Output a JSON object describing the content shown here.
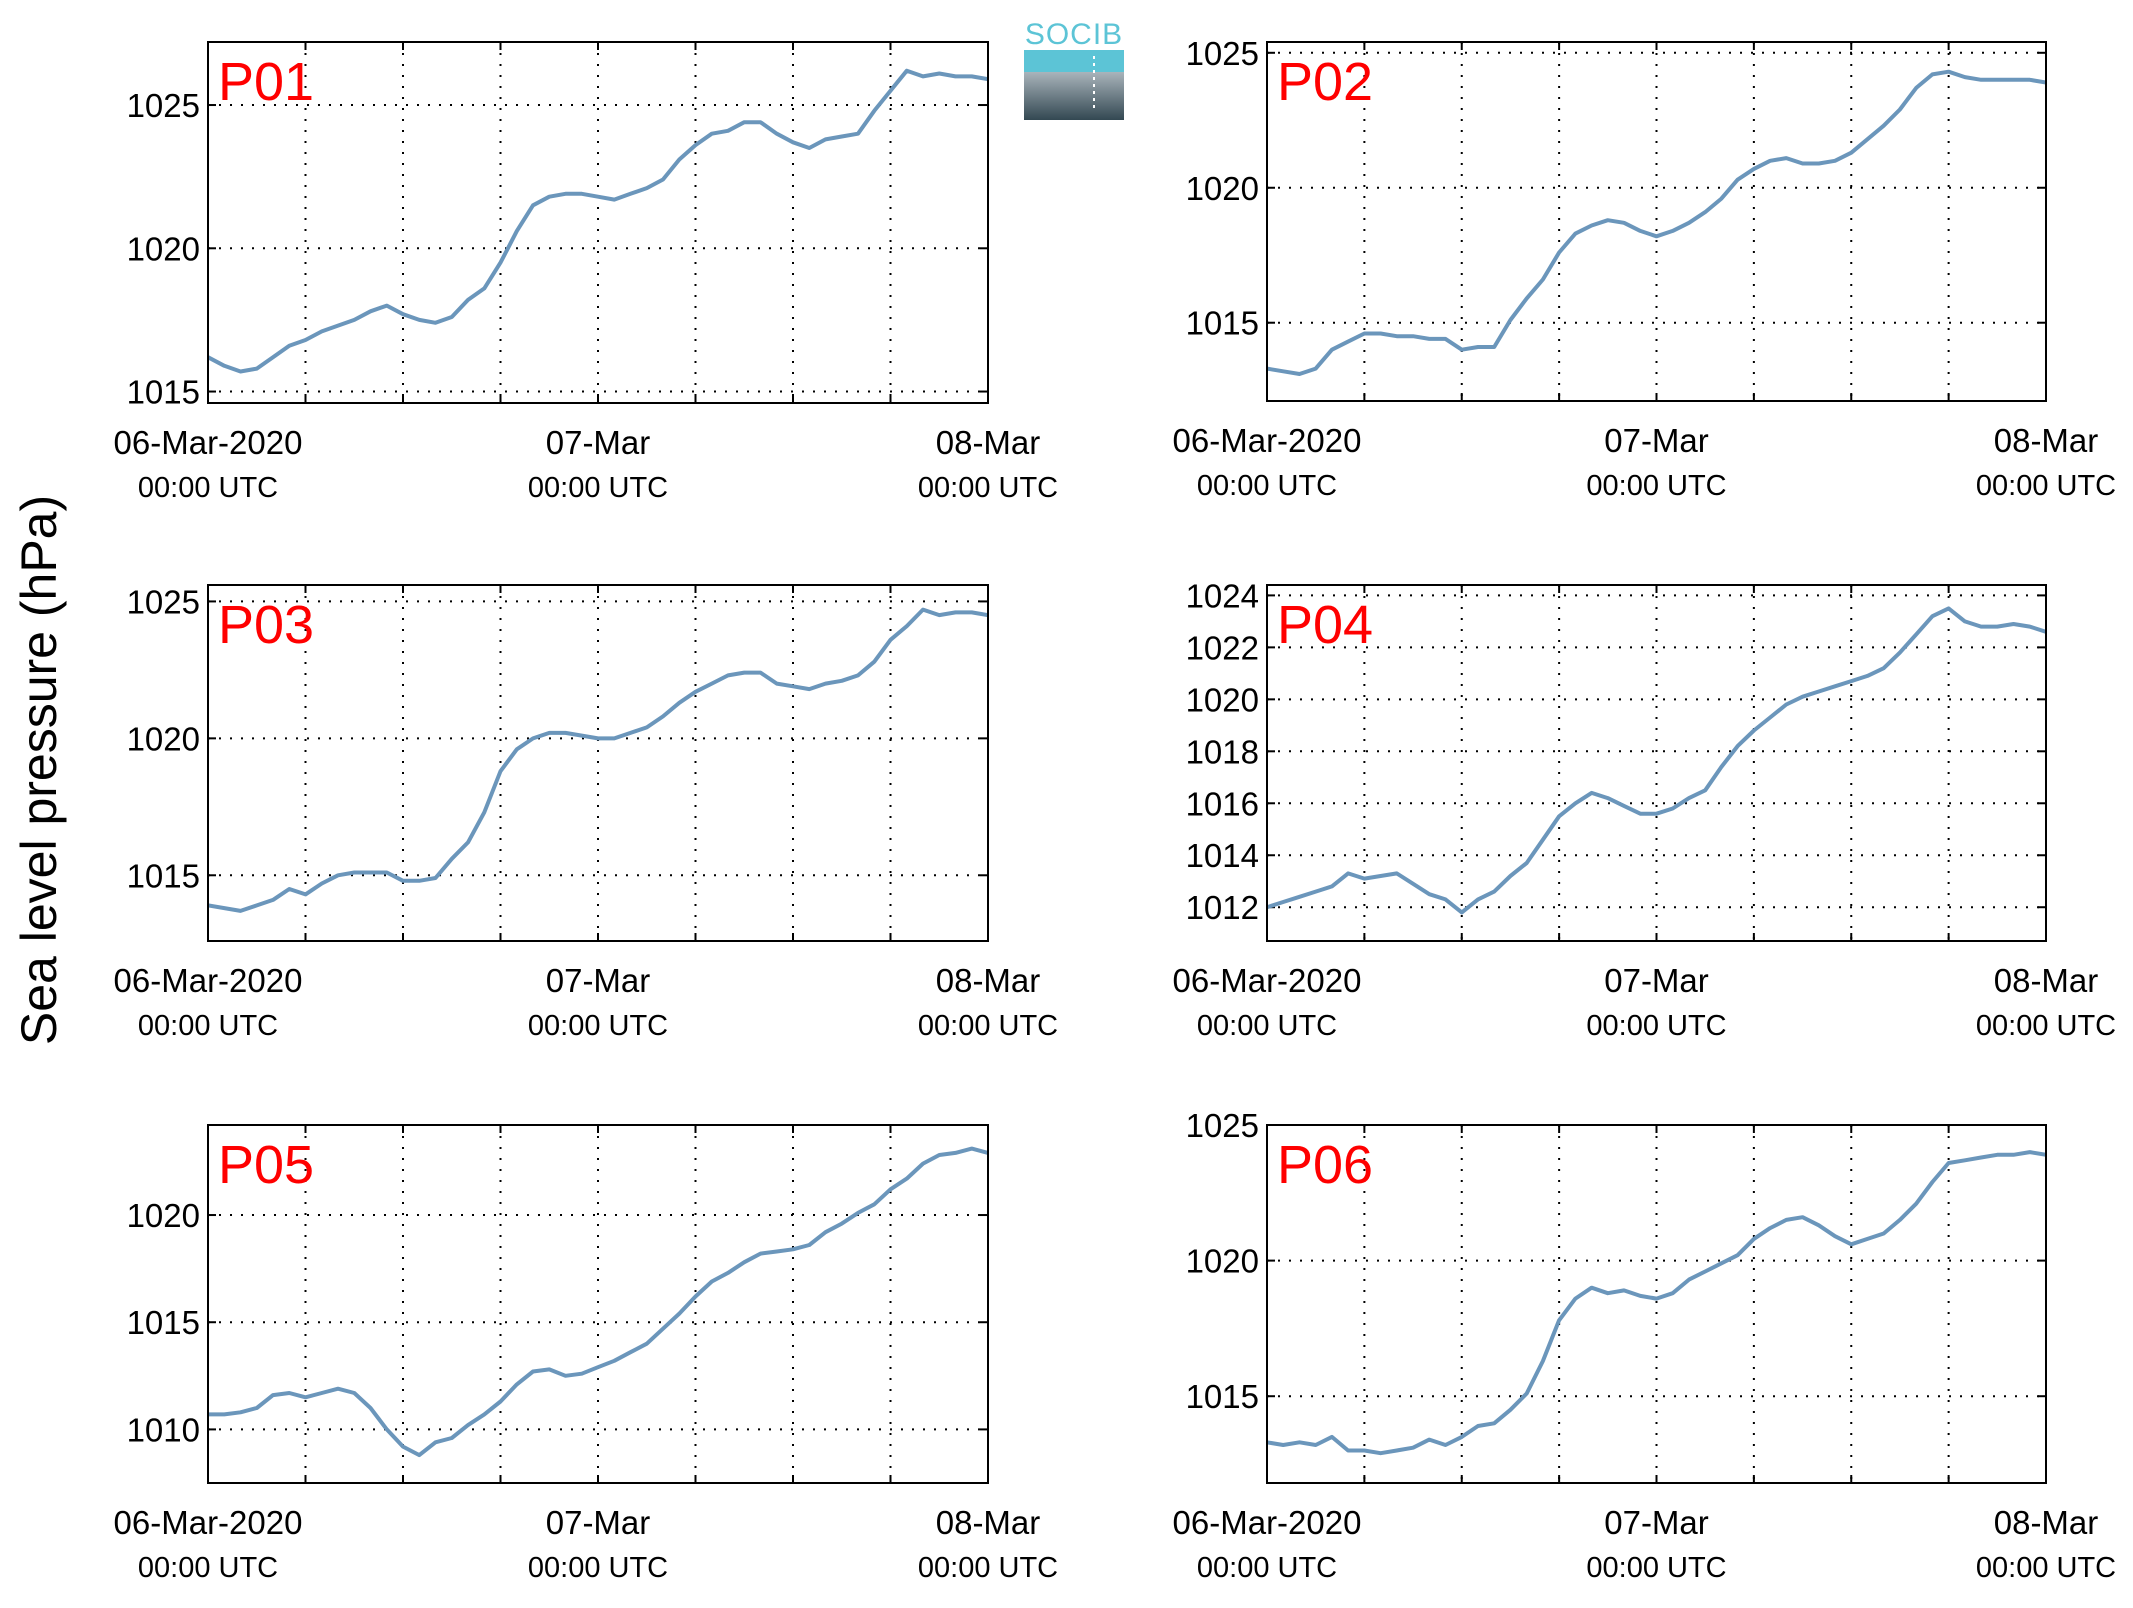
{
  "figure": {
    "ylabel": "Sea level pressure (hPa)",
    "logo": {
      "text": "SOCIB"
    }
  },
  "style": {
    "line_color": "#6b96bb",
    "label_color": "#ff0000",
    "grid_color": "#000000"
  },
  "chart_data": [
    {
      "type": "line",
      "label": "P01",
      "xlim": [
        0,
        48
      ],
      "ylim": [
        1014.6,
        1027.2
      ],
      "yticks": [
        1015,
        1020,
        1025
      ],
      "xticks_major": [
        {
          "value": 0,
          "date": "06-Mar-2020",
          "time": "00:00 UTC"
        },
        {
          "value": 24,
          "date": "07-Mar",
          "time": "00:00 UTC"
        },
        {
          "value": 48,
          "date": "08-Mar",
          "time": "00:00 UTC"
        }
      ],
      "xgrid": [
        6,
        12,
        18,
        24,
        30,
        36,
        42
      ],
      "x": [
        0,
        1,
        2,
        3,
        4,
        5,
        6,
        7,
        8,
        9,
        10,
        11,
        12,
        13,
        14,
        15,
        16,
        17,
        18,
        19,
        20,
        21,
        22,
        23,
        24,
        25,
        26,
        27,
        28,
        29,
        30,
        31,
        32,
        33,
        34,
        35,
        36,
        37,
        38,
        39,
        40,
        41,
        42,
        43,
        44,
        45,
        46,
        47,
        48
      ],
      "values": [
        1016.2,
        1015.9,
        1015.7,
        1015.8,
        1016.2,
        1016.6,
        1016.8,
        1017.1,
        1017.3,
        1017.5,
        1017.8,
        1018.0,
        1017.7,
        1017.5,
        1017.4,
        1017.6,
        1018.2,
        1018.6,
        1019.5,
        1020.6,
        1021.5,
        1021.8,
        1021.9,
        1021.9,
        1021.8,
        1021.7,
        1021.9,
        1022.1,
        1022.4,
        1023.1,
        1023.6,
        1024.0,
        1024.1,
        1024.4,
        1024.4,
        1024.0,
        1023.7,
        1023.5,
        1023.8,
        1023.9,
        1024.0,
        1024.8,
        1025.5,
        1026.2,
        1026.0,
        1026.1,
        1026.0,
        1026.0,
        1025.9
      ]
    },
    {
      "type": "line",
      "label": "P02",
      "xlim": [
        0,
        48
      ],
      "ylim": [
        1012.1,
        1025.4
      ],
      "yticks": [
        1015,
        1020,
        1025
      ],
      "xticks_major": [
        {
          "value": 0,
          "date": "06-Mar-2020",
          "time": "00:00 UTC"
        },
        {
          "value": 24,
          "date": "07-Mar",
          "time": "00:00 UTC"
        },
        {
          "value": 48,
          "date": "08-Mar",
          "time": "00:00 UTC"
        }
      ],
      "xgrid": [
        6,
        12,
        18,
        24,
        30,
        36,
        42
      ],
      "x": [
        0,
        1,
        2,
        3,
        4,
        5,
        6,
        7,
        8,
        9,
        10,
        11,
        12,
        13,
        14,
        15,
        16,
        17,
        18,
        19,
        20,
        21,
        22,
        23,
        24,
        25,
        26,
        27,
        28,
        29,
        30,
        31,
        32,
        33,
        34,
        35,
        36,
        37,
        38,
        39,
        40,
        41,
        42,
        43,
        44,
        45,
        46,
        47,
        48
      ],
      "values": [
        1013.3,
        1013.2,
        1013.1,
        1013.3,
        1014.0,
        1014.3,
        1014.6,
        1014.6,
        1014.5,
        1014.5,
        1014.4,
        1014.4,
        1014.0,
        1014.1,
        1014.1,
        1015.1,
        1015.9,
        1016.6,
        1017.6,
        1018.3,
        1018.6,
        1018.8,
        1018.7,
        1018.4,
        1018.2,
        1018.4,
        1018.7,
        1019.1,
        1019.6,
        1020.3,
        1020.7,
        1021.0,
        1021.1,
        1020.9,
        1020.9,
        1021.0,
        1021.3,
        1021.8,
        1022.3,
        1022.9,
        1023.7,
        1024.2,
        1024.3,
        1024.1,
        1024.0,
        1024.0,
        1024.0,
        1024.0,
        1023.9
      ]
    },
    {
      "type": "line",
      "label": "P03",
      "xlim": [
        0,
        48
      ],
      "ylim": [
        1012.6,
        1025.6
      ],
      "yticks": [
        1015,
        1020,
        1025
      ],
      "xticks_major": [
        {
          "value": 0,
          "date": "06-Mar-2020",
          "time": "00:00 UTC"
        },
        {
          "value": 24,
          "date": "07-Mar",
          "time": "00:00 UTC"
        },
        {
          "value": 48,
          "date": "08-Mar",
          "time": "00:00 UTC"
        }
      ],
      "xgrid": [
        6,
        12,
        18,
        24,
        30,
        36,
        42
      ],
      "x": [
        0,
        1,
        2,
        3,
        4,
        5,
        6,
        7,
        8,
        9,
        10,
        11,
        12,
        13,
        14,
        15,
        16,
        17,
        18,
        19,
        20,
        21,
        22,
        23,
        24,
        25,
        26,
        27,
        28,
        29,
        30,
        31,
        32,
        33,
        34,
        35,
        36,
        37,
        38,
        39,
        40,
        41,
        42,
        43,
        44,
        45,
        46,
        47,
        48
      ],
      "values": [
        1013.9,
        1013.8,
        1013.7,
        1013.9,
        1014.1,
        1014.5,
        1014.3,
        1014.7,
        1015.0,
        1015.1,
        1015.1,
        1015.1,
        1014.8,
        1014.8,
        1014.9,
        1015.6,
        1016.2,
        1017.3,
        1018.8,
        1019.6,
        1020.0,
        1020.2,
        1020.2,
        1020.1,
        1020.0,
        1020.0,
        1020.2,
        1020.4,
        1020.8,
        1021.3,
        1021.7,
        1022.0,
        1022.3,
        1022.4,
        1022.4,
        1022.0,
        1021.9,
        1021.8,
        1022.0,
        1022.1,
        1022.3,
        1022.8,
        1023.6,
        1024.1,
        1024.7,
        1024.5,
        1024.6,
        1024.6,
        1024.5
      ]
    },
    {
      "type": "line",
      "label": "P04",
      "xlim": [
        0,
        48
      ],
      "ylim": [
        1010.7,
        1024.4
      ],
      "yticks": [
        1012,
        1014,
        1016,
        1018,
        1020,
        1022,
        1024
      ],
      "xticks_major": [
        {
          "value": 0,
          "date": "06-Mar-2020",
          "time": "00:00 UTC"
        },
        {
          "value": 24,
          "date": "07-Mar",
          "time": "00:00 UTC"
        },
        {
          "value": 48,
          "date": "08-Mar",
          "time": "00:00 UTC"
        }
      ],
      "xgrid": [
        6,
        12,
        18,
        24,
        30,
        36,
        42
      ],
      "x": [
        0,
        1,
        2,
        3,
        4,
        5,
        6,
        7,
        8,
        9,
        10,
        11,
        12,
        13,
        14,
        15,
        16,
        17,
        18,
        19,
        20,
        21,
        22,
        23,
        24,
        25,
        26,
        27,
        28,
        29,
        30,
        31,
        32,
        33,
        34,
        35,
        36,
        37,
        38,
        39,
        40,
        41,
        42,
        43,
        44,
        45,
        46,
        47,
        48
      ],
      "values": [
        1012.0,
        1012.2,
        1012.4,
        1012.6,
        1012.8,
        1013.3,
        1013.1,
        1013.2,
        1013.3,
        1012.9,
        1012.5,
        1012.3,
        1011.8,
        1012.3,
        1012.6,
        1013.2,
        1013.7,
        1014.6,
        1015.5,
        1016.0,
        1016.4,
        1016.2,
        1015.9,
        1015.6,
        1015.6,
        1015.8,
        1016.2,
        1016.5,
        1017.4,
        1018.2,
        1018.8,
        1019.3,
        1019.8,
        1020.1,
        1020.3,
        1020.5,
        1020.7,
        1020.9,
        1021.2,
        1021.8,
        1022.5,
        1023.2,
        1023.5,
        1023.0,
        1022.8,
        1022.8,
        1022.9,
        1022.8,
        1022.6
      ]
    },
    {
      "type": "line",
      "label": "P05",
      "xlim": [
        0,
        48
      ],
      "ylim": [
        1007.5,
        1024.2
      ],
      "yticks": [
        1010,
        1015,
        1020
      ],
      "xticks_major": [
        {
          "value": 0,
          "date": "06-Mar-2020",
          "time": "00:00 UTC"
        },
        {
          "value": 24,
          "date": "07-Mar",
          "time": "00:00 UTC"
        },
        {
          "value": 48,
          "date": "08-Mar",
          "time": "00:00 UTC"
        }
      ],
      "xgrid": [
        6,
        12,
        18,
        24,
        30,
        36,
        42
      ],
      "x": [
        0,
        1,
        2,
        3,
        4,
        5,
        6,
        7,
        8,
        9,
        10,
        11,
        12,
        13,
        14,
        15,
        16,
        17,
        18,
        19,
        20,
        21,
        22,
        23,
        24,
        25,
        26,
        27,
        28,
        29,
        30,
        31,
        32,
        33,
        34,
        35,
        36,
        37,
        38,
        39,
        40,
        41,
        42,
        43,
        44,
        45,
        46,
        47,
        48
      ],
      "values": [
        1010.7,
        1010.7,
        1010.8,
        1011.0,
        1011.6,
        1011.7,
        1011.5,
        1011.7,
        1011.9,
        1011.7,
        1011.0,
        1010.0,
        1009.2,
        1008.8,
        1009.4,
        1009.6,
        1010.2,
        1010.7,
        1011.3,
        1012.1,
        1012.7,
        1012.8,
        1012.5,
        1012.6,
        1012.9,
        1013.2,
        1013.6,
        1014.0,
        1014.7,
        1015.4,
        1016.2,
        1016.9,
        1017.3,
        1017.8,
        1018.2,
        1018.3,
        1018.4,
        1018.6,
        1019.2,
        1019.6,
        1020.1,
        1020.5,
        1021.2,
        1021.7,
        1022.4,
        1022.8,
        1022.9,
        1023.1,
        1022.9
      ]
    },
    {
      "type": "line",
      "label": "P06",
      "xlim": [
        0,
        48
      ],
      "ylim": [
        1011.8,
        1025.0
      ],
      "yticks": [
        1015,
        1020,
        1025
      ],
      "xticks_major": [
        {
          "value": 0,
          "date": "06-Mar-2020",
          "time": "00:00 UTC"
        },
        {
          "value": 24,
          "date": "07-Mar",
          "time": "00:00 UTC"
        },
        {
          "value": 48,
          "date": "08-Mar",
          "time": "00:00 UTC"
        }
      ],
      "xgrid": [
        6,
        12,
        18,
        24,
        30,
        36,
        42
      ],
      "x": [
        0,
        1,
        2,
        3,
        4,
        5,
        6,
        7,
        8,
        9,
        10,
        11,
        12,
        13,
        14,
        15,
        16,
        17,
        18,
        19,
        20,
        21,
        22,
        23,
        24,
        25,
        26,
        27,
        28,
        29,
        30,
        31,
        32,
        33,
        34,
        35,
        36,
        37,
        38,
        39,
        40,
        41,
        42,
        43,
        44,
        45,
        46,
        47,
        48
      ],
      "values": [
        1013.3,
        1013.2,
        1013.3,
        1013.2,
        1013.5,
        1013.0,
        1013.0,
        1012.9,
        1013.0,
        1013.1,
        1013.4,
        1013.2,
        1013.5,
        1013.9,
        1014.0,
        1014.5,
        1015.1,
        1016.3,
        1017.8,
        1018.6,
        1019.0,
        1018.8,
        1018.9,
        1018.7,
        1018.6,
        1018.8,
        1019.3,
        1019.6,
        1019.9,
        1020.2,
        1020.8,
        1021.2,
        1021.5,
        1021.6,
        1021.3,
        1020.9,
        1020.6,
        1020.8,
        1021.0,
        1021.5,
        1022.1,
        1022.9,
        1023.6,
        1023.7,
        1023.8,
        1023.9,
        1023.9,
        1024.0,
        1023.9
      ]
    }
  ]
}
